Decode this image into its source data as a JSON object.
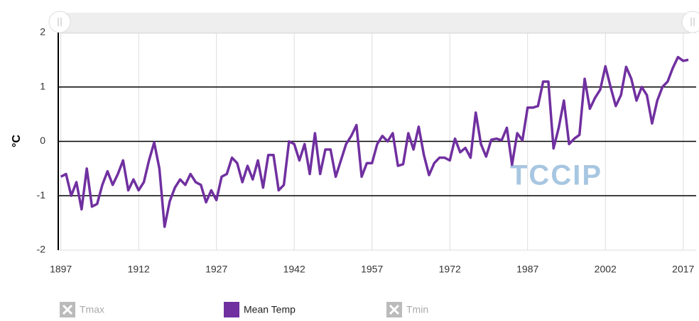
{
  "chart_data": {
    "type": "line",
    "y_label": "°C",
    "watermark": "TCCIP",
    "x": [
      1897,
      1898,
      1899,
      1900,
      1901,
      1902,
      1903,
      1904,
      1905,
      1906,
      1907,
      1908,
      1909,
      1910,
      1911,
      1912,
      1913,
      1914,
      1915,
      1916,
      1917,
      1918,
      1919,
      1920,
      1921,
      1922,
      1923,
      1924,
      1925,
      1926,
      1927,
      1928,
      1929,
      1930,
      1931,
      1932,
      1933,
      1934,
      1935,
      1936,
      1937,
      1938,
      1939,
      1940,
      1941,
      1942,
      1943,
      1944,
      1945,
      1946,
      1947,
      1948,
      1949,
      1950,
      1951,
      1952,
      1953,
      1954,
      1955,
      1956,
      1957,
      1958,
      1959,
      1960,
      1961,
      1962,
      1963,
      1964,
      1965,
      1966,
      1967,
      1968,
      1969,
      1970,
      1971,
      1972,
      1973,
      1974,
      1975,
      1976,
      1977,
      1978,
      1979,
      1980,
      1981,
      1982,
      1983,
      1984,
      1985,
      1986,
      1987,
      1988,
      1989,
      1990,
      1991,
      1992,
      1993,
      1994,
      1995,
      1996,
      1997,
      1998,
      1999,
      2000,
      2001,
      2002,
      2003,
      2004,
      2005,
      2006,
      2007,
      2008,
      2009,
      2010,
      2011,
      2012,
      2013,
      2014,
      2015,
      2016,
      2017,
      2018
    ],
    "series": [
      {
        "name": "Mean Temp",
        "color": "#7030a0",
        "values": [
          -0.65,
          -0.6,
          -1.0,
          -0.75,
          -1.25,
          -0.5,
          -1.2,
          -1.15,
          -0.8,
          -0.55,
          -0.8,
          -0.6,
          -0.35,
          -0.9,
          -0.7,
          -0.9,
          -0.75,
          -0.35,
          -0.02,
          -0.5,
          -1.57,
          -1.1,
          -0.85,
          -0.7,
          -0.8,
          -0.6,
          -0.75,
          -0.8,
          -1.12,
          -0.9,
          -1.08,
          -0.65,
          -0.6,
          -0.3,
          -0.4,
          -0.75,
          -0.45,
          -0.7,
          -0.35,
          -0.85,
          -0.25,
          -0.25,
          -0.9,
          -0.8,
          0.0,
          -0.05,
          -0.35,
          -0.05,
          -0.6,
          0.15,
          -0.6,
          -0.15,
          -0.15,
          -0.65,
          -0.35,
          -0.05,
          0.1,
          0.3,
          -0.65,
          -0.4,
          -0.4,
          -0.05,
          0.1,
          0.0,
          0.15,
          -0.45,
          -0.42,
          0.15,
          -0.15,
          0.27,
          -0.25,
          -0.62,
          -0.4,
          -0.3,
          -0.3,
          -0.35,
          0.05,
          -0.2,
          -0.12,
          -0.3,
          0.53,
          -0.05,
          -0.28,
          0.03,
          0.05,
          0.02,
          0.25,
          -0.43,
          0.15,
          0.02,
          0.62,
          0.62,
          0.65,
          1.1,
          1.1,
          -0.13,
          0.25,
          0.75,
          -0.05,
          0.05,
          0.12,
          1.15,
          0.6,
          0.8,
          0.95,
          1.38,
          1.0,
          0.65,
          0.85,
          1.37,
          1.15,
          0.75,
          1.0,
          0.85,
          0.33,
          0.75,
          1.0,
          1.1,
          1.35,
          1.55,
          1.48,
          1.5
        ]
      }
    ],
    "legend": [
      {
        "name": "Tmax",
        "enabled": false,
        "color": "#bbbbbb"
      },
      {
        "name": "Mean Temp",
        "enabled": true,
        "color": "#7030a0"
      },
      {
        "name": "Tmin",
        "enabled": false,
        "color": "#bbbbbb"
      }
    ],
    "xlim": [
      1896.5,
      2019.5
    ],
    "xticks": [
      1897,
      1912,
      1927,
      1942,
      1957,
      1972,
      1987,
      2002,
      2017
    ],
    "ylim": [
      -2,
      2
    ],
    "yticks": [
      -2,
      -1,
      0,
      1,
      2
    ],
    "grid": true
  }
}
